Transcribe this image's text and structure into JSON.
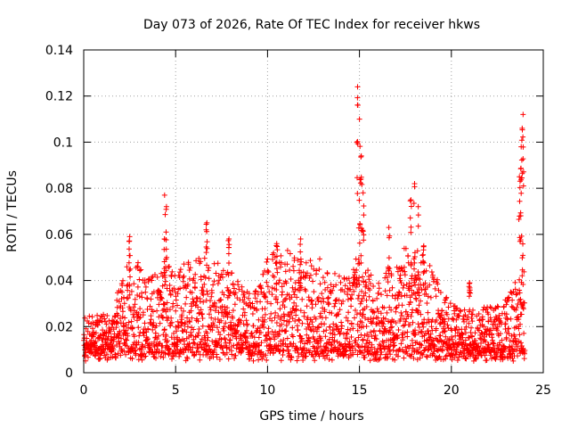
{
  "chart_data": {
    "type": "scatter",
    "title": "Day 073 of 2026, Rate Of TEC Index for receiver hkws",
    "xlabel": "GPS time / hours",
    "ylabel": "ROTI / TECUs",
    "xlim": [
      0,
      25
    ],
    "ylim": [
      0,
      0.14
    ],
    "x_ticks": [
      0,
      5,
      10,
      15,
      20,
      25
    ],
    "x_tick_labels": [
      "0",
      "5",
      "10",
      "15",
      "20",
      "25"
    ],
    "y_ticks": [
      0,
      0.02,
      0.04,
      0.06,
      0.08,
      0.1,
      0.12,
      0.14
    ],
    "y_tick_labels": [
      "0",
      "0.02",
      "0.04",
      "0.06",
      "0.08",
      "0.1",
      "0.12",
      "0.14"
    ],
    "grid": true,
    "marker": "+",
    "series_color": "#ff0000",
    "envelope": {
      "description": "Approximate upper envelope of the dense point cloud (hour, ROTI)",
      "x": [
        0,
        0.5,
        1,
        1.5,
        2,
        2.5,
        3,
        3.5,
        4,
        4.5,
        5,
        5.5,
        6,
        6.5,
        7,
        7.5,
        8,
        8.5,
        9,
        9.5,
        10,
        10.5,
        11,
        11.5,
        12,
        12.5,
        13,
        13.5,
        14,
        14.5,
        15,
        15.5,
        16,
        16.5,
        17,
        17.5,
        18,
        18.5,
        19,
        19.5,
        20,
        20.5,
        21,
        21.5,
        22,
        22.5,
        23,
        23.5,
        24
      ],
      "values": [
        0.024,
        0.025,
        0.026,
        0.025,
        0.04,
        0.05,
        0.048,
        0.045,
        0.042,
        0.05,
        0.042,
        0.05,
        0.055,
        0.05,
        0.05,
        0.05,
        0.045,
        0.038,
        0.035,
        0.036,
        0.05,
        0.055,
        0.055,
        0.05,
        0.048,
        0.05,
        0.05,
        0.045,
        0.042,
        0.045,
        0.052,
        0.045,
        0.04,
        0.045,
        0.05,
        0.055,
        0.058,
        0.055,
        0.045,
        0.035,
        0.03,
        0.028,
        0.028,
        0.028,
        0.03,
        0.03,
        0.032,
        0.04,
        0.045
      ]
    },
    "notable_points": {
      "x": [
        2.5,
        4.4,
        4.5,
        6.7,
        7.9,
        10.5,
        11.8,
        14.9,
        15.0,
        15.1,
        15.2,
        16.6,
        17.8,
        18.0,
        18.2,
        18.5,
        21.0,
        23.7,
        23.8,
        23.85,
        23.9
      ],
      "values": [
        0.059,
        0.077,
        0.072,
        0.065,
        0.058,
        0.056,
        0.058,
        0.124,
        0.11,
        0.094,
        0.078,
        0.063,
        0.075,
        0.082,
        0.072,
        0.055,
        0.039,
        0.085,
        0.098,
        0.106,
        0.112
      ]
    }
  }
}
